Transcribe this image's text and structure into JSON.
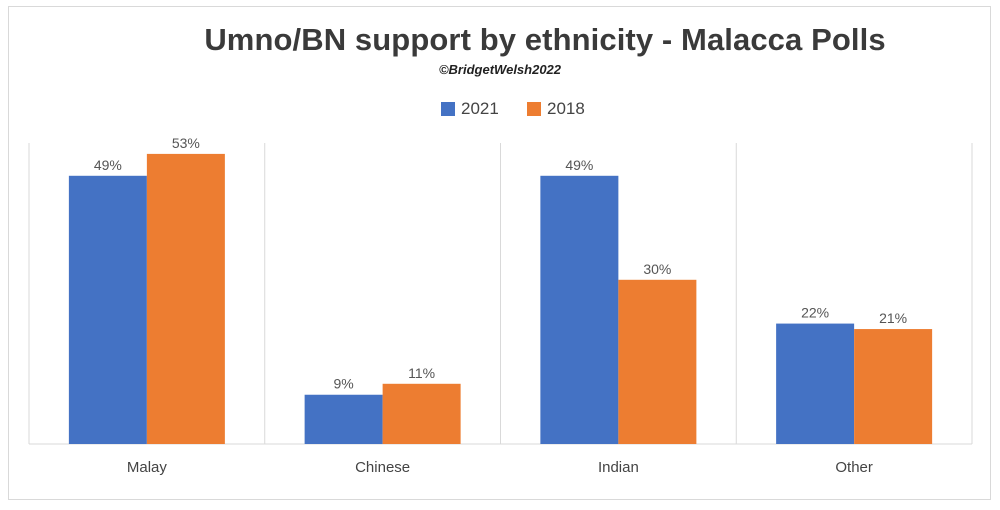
{
  "chart_data": {
    "type": "bar",
    "title": "Umno/BN support by ethnicity - Malacca Polls",
    "subtitle": "©BridgetWelsh2022",
    "categories": [
      "Malay",
      "Chinese",
      "Indian",
      "Other"
    ],
    "series": [
      {
        "name": "2021",
        "values": [
          49,
          9,
          49,
          22
        ],
        "labels": [
          "49%",
          "9%",
          "49%",
          "22%"
        ],
        "color": "#4472c4"
      },
      {
        "name": "2018",
        "values": [
          53,
          11,
          30,
          21
        ],
        "labels": [
          "53%",
          "11%",
          "30%",
          "21%"
        ],
        "color": "#ed7d31"
      }
    ],
    "ylim": [
      0,
      57
    ],
    "legend": "top-center",
    "grid": false,
    "category_separators": true
  }
}
